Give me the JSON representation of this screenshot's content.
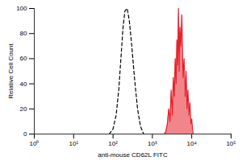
{
  "chart_data": {
    "type": "line",
    "x_label": "anti-mouse CD62L FITC",
    "y_label": "Relative Cell Count",
    "log": "x",
    "grid": false,
    "xlim": [
      1,
      100000
    ],
    "xticks": [
      {
        "value": 1,
        "label": "10⁰"
      },
      {
        "value": 10,
        "label": "10¹"
      },
      {
        "value": 100,
        "label": "10²"
      },
      {
        "value": 1000,
        "label": "10³"
      },
      {
        "value": 10000,
        "label": "10⁴"
      },
      {
        "value": 100000,
        "label": "10⁵"
      }
    ],
    "ylim": [
      0,
      100
    ],
    "yticks": [
      0,
      20,
      40,
      60,
      80,
      100
    ],
    "series": [
      {
        "type": "line",
        "line_style": "dashed",
        "color": "#000000",
        "x": [
          80,
          100,
          120,
          140,
          160,
          180,
          200,
          230,
          260,
          300,
          350,
          420,
          500,
          600
        ],
        "values": [
          0,
          4,
          15,
          35,
          62,
          85,
          98,
          100,
          90,
          70,
          45,
          20,
          6,
          0
        ]
      },
      {
        "type": "area",
        "line_style": "solid",
        "color": "#e8202a",
        "x": [
          2000,
          2200,
          2400,
          2600,
          2800,
          3000,
          3200,
          3400,
          3600,
          3800,
          4000,
          4200,
          4400,
          4600,
          4800,
          5000,
          5300,
          5600,
          6000,
          6400,
          6800,
          7200,
          7600,
          8000,
          8500,
          9000,
          9500,
          10000,
          10500,
          11000
        ],
        "values": [
          0,
          2,
          8,
          20,
          10,
          35,
          15,
          45,
          30,
          60,
          40,
          75,
          55,
          100,
          50,
          85,
          70,
          95,
          45,
          60,
          30,
          50,
          20,
          35,
          15,
          25,
          8,
          12,
          3,
          0
        ]
      }
    ]
  }
}
